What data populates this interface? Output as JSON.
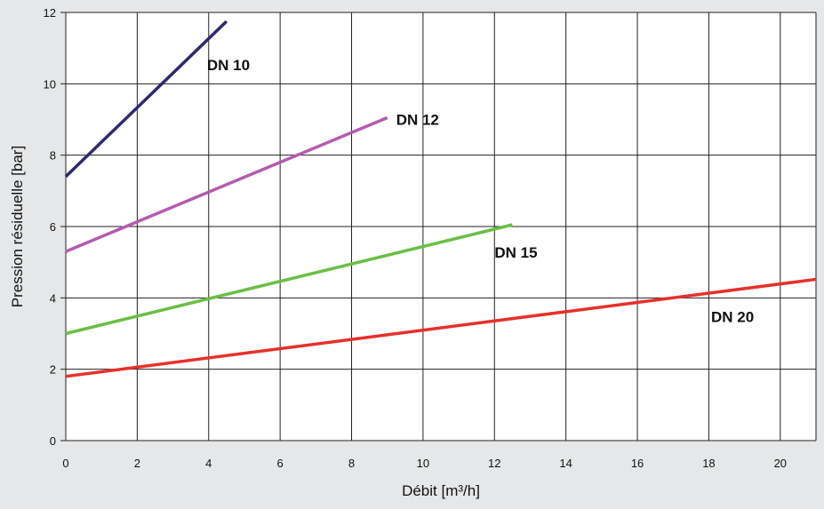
{
  "chart_data": {
    "type": "line",
    "xlabel": "Débit [m³/h]",
    "ylabel": "Pression résiduelle [bar]",
    "xlim": [
      0,
      21
    ],
    "ylim": [
      0,
      12
    ],
    "xticks": [
      0,
      2,
      4,
      6,
      8,
      10,
      12,
      14,
      16,
      18,
      20
    ],
    "yticks": [
      0,
      2,
      4,
      6,
      8,
      10,
      12
    ],
    "grid": true,
    "background": "#e6e7e8",
    "plot_background": "#ffffff",
    "series": [
      {
        "name": "DN 10",
        "color": "#2e2a6b",
        "x": [
          0,
          4.5
        ],
        "y": [
          7.4,
          11.75
        ]
      },
      {
        "name": "DN 12",
        "color": "#b35bb0",
        "x": [
          0,
          9
        ],
        "y": [
          5.3,
          9.05
        ]
      },
      {
        "name": "DN 15",
        "color": "#6abf45",
        "x": [
          0,
          12.5
        ],
        "y": [
          3.0,
          6.05
        ]
      },
      {
        "name": "DN 20",
        "color": "#e8302b",
        "x": [
          0,
          21
        ],
        "y": [
          1.8,
          4.52
        ]
      }
    ]
  }
}
